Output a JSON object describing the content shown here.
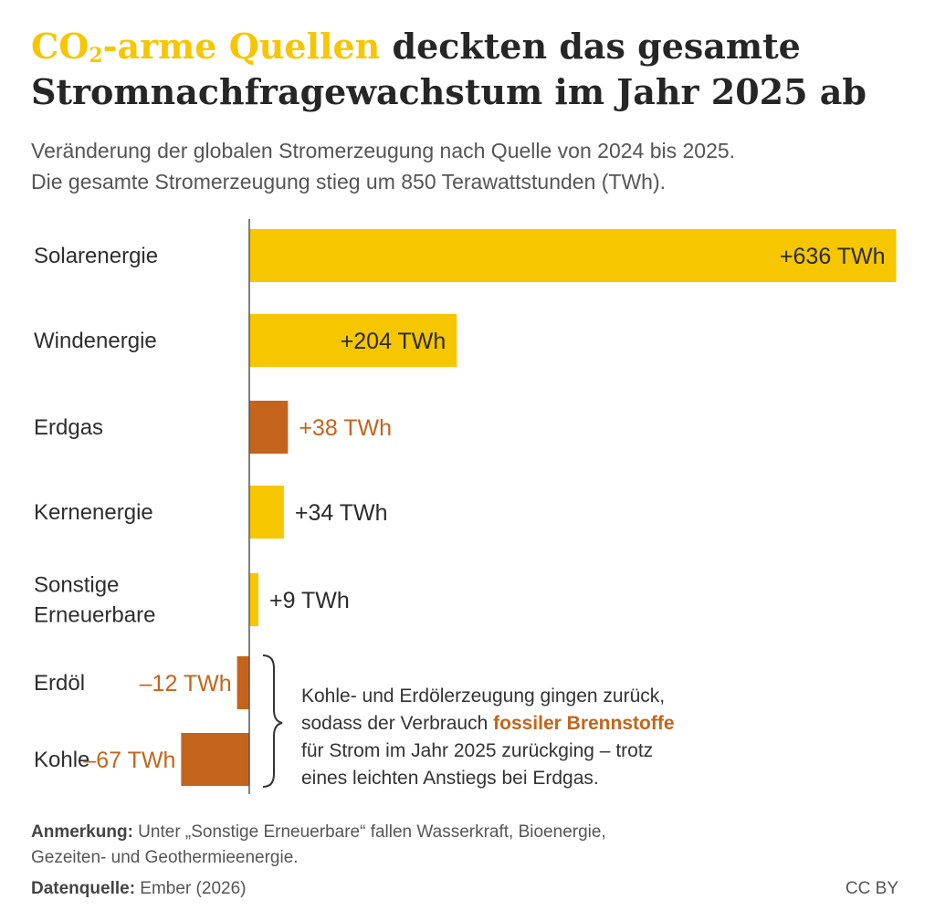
{
  "header": {
    "title_highlight_pre": "CO",
    "title_highlight_sub": "2",
    "title_highlight_post": "-arme Quellen",
    "title_rest": " deckten das gesamte Stromnachfragewachstum im Jahr 2025 ab",
    "subtitle_line1": "Veränderung der globalen Stromerzeugung nach Quelle von 2024 bis 2025.",
    "subtitle_line2": "Die gesamte Stromerzeugung stieg um 850 Terawattstunden (TWh)."
  },
  "chart_data": {
    "type": "bar",
    "orientation": "horizontal",
    "unit": "TWh",
    "categories": [
      "Solarenergie",
      "Windenergie",
      "Erdgas",
      "Kernenergie",
      "Sonstige Erneuerbare",
      "Erdöl",
      "Kohle"
    ],
    "category_lines": [
      [
        "Solarenergie"
      ],
      [
        "Windenergie"
      ],
      [
        "Erdgas"
      ],
      [
        "Kernenergie"
      ],
      [
        "Sonstige",
        "Erneuerbare"
      ],
      [
        "Erdöl"
      ],
      [
        "Kohle"
      ]
    ],
    "values": [
      636,
      204,
      38,
      34,
      9,
      -12,
      -67
    ],
    "value_labels": [
      "+636 TWh",
      "+204 TWh",
      "+38 TWh",
      "+34 TWh",
      "+9 TWh",
      "–12 TWh",
      "–67 TWh"
    ],
    "groups": [
      "low-carbon",
      "low-carbon",
      "fossil",
      "low-carbon",
      "low-carbon",
      "fossil",
      "fossil"
    ],
    "colors": {
      "low-carbon": "#f6c600",
      "fossil": "#c4641c",
      "label_dark": "#2b2b2b",
      "axis": "#555555"
    }
  },
  "annotation": {
    "line1": "Kohle- und Erdölerzeugung gingen zurück,",
    "line2_pre": "sodass der Verbrauch ",
    "line2_highlight": "fossiler Brennstoffe",
    "line3": "für Strom im Jahr 2025 zurückging – trotz",
    "line4": "eines leichten Anstiegs bei Erdgas."
  },
  "footer": {
    "note_label": "Anmerkung:",
    "note_text": " Unter „Sonstige Erneuerbare“ fallen Wasserkraft, Bioenergie,",
    "note_text2": "Gezeiten- und Geothermieenergie.",
    "source_label": "Datenquelle:",
    "source_text": " Ember (2026)",
    "license": "CC BY"
  }
}
